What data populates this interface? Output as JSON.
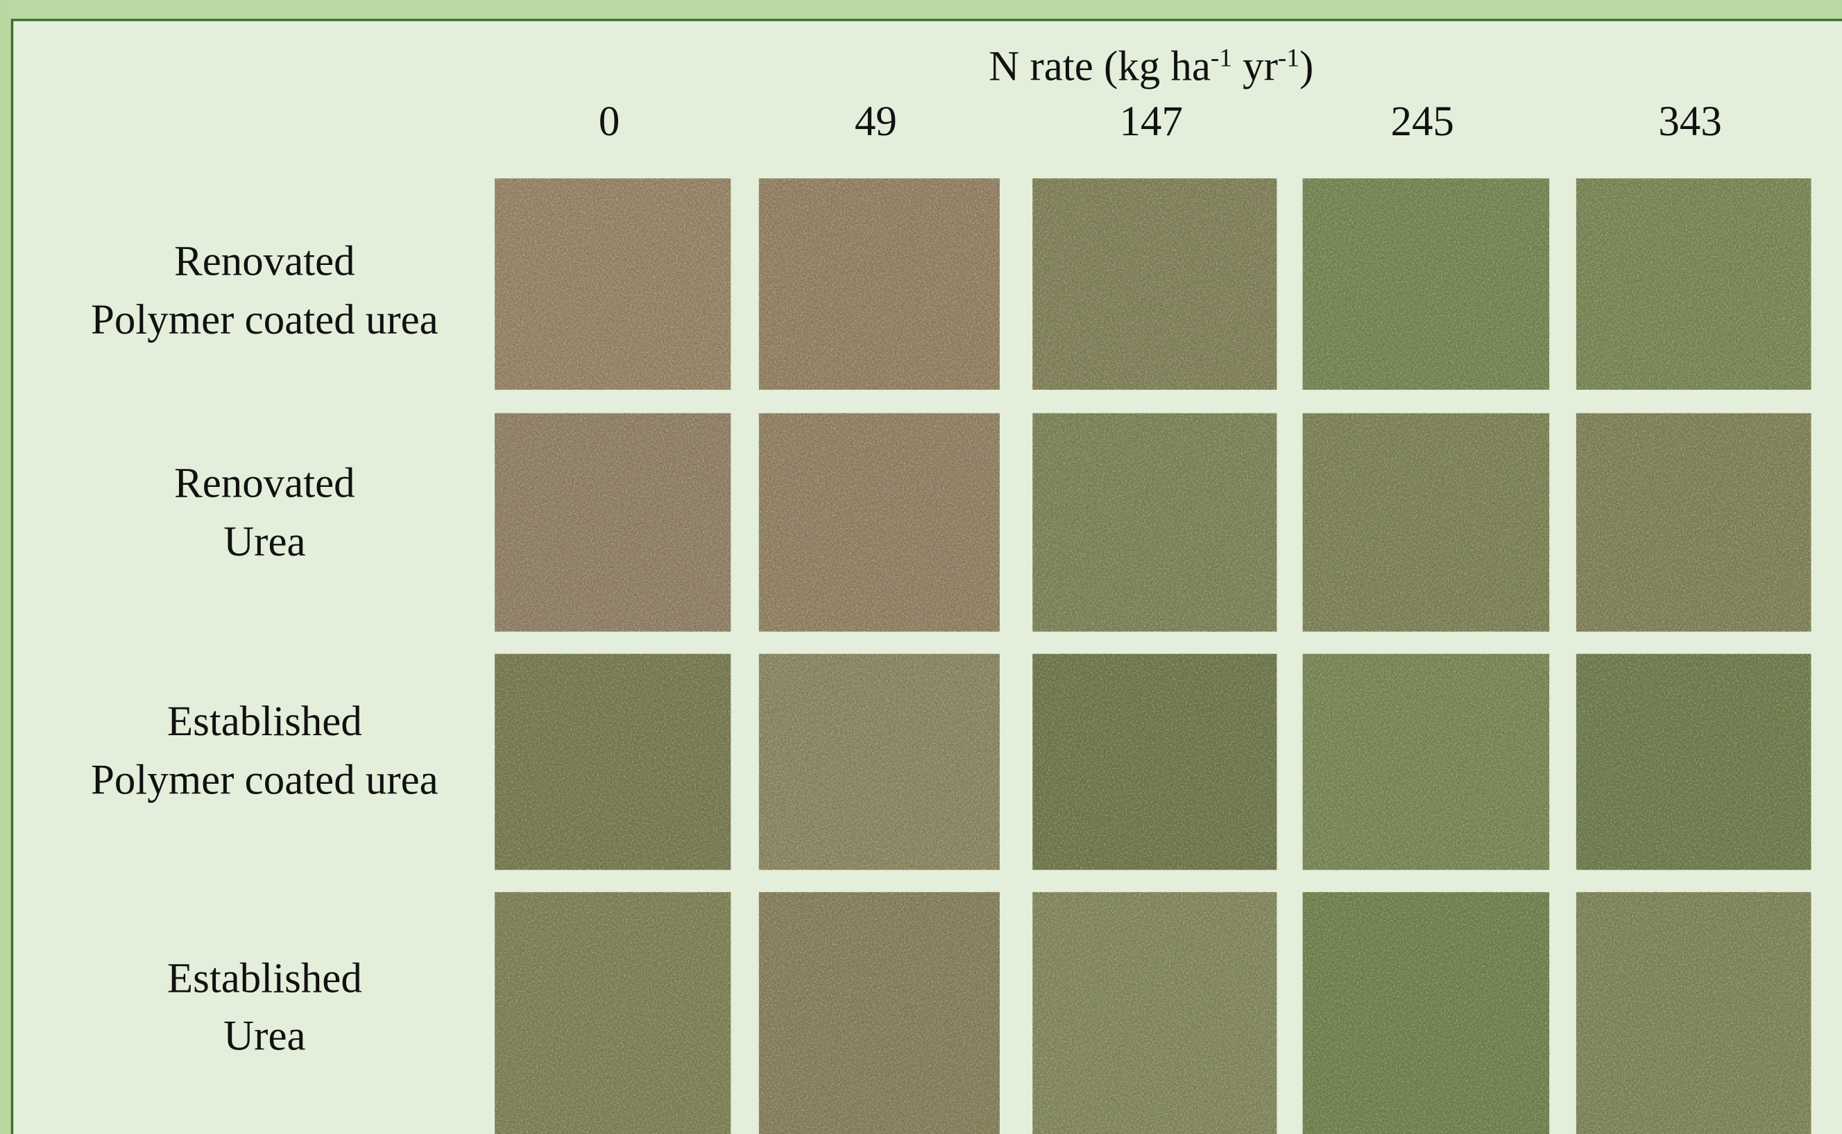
{
  "header": {
    "label": [
      "N rate (kg ha",
      "-1",
      " yr",
      "-1",
      ")"
    ]
  },
  "columns": [
    "0",
    "49",
    "147",
    "245",
    "343"
  ],
  "rows": [
    {
      "lines": [
        "Renovated",
        "Polymer coated urea"
      ]
    },
    {
      "lines": [
        "Renovated",
        "Urea"
      ]
    },
    {
      "lines": [
        "Established",
        "Polymer coated urea"
      ]
    },
    {
      "lines": [
        "Established",
        "Urea"
      ]
    }
  ]
}
